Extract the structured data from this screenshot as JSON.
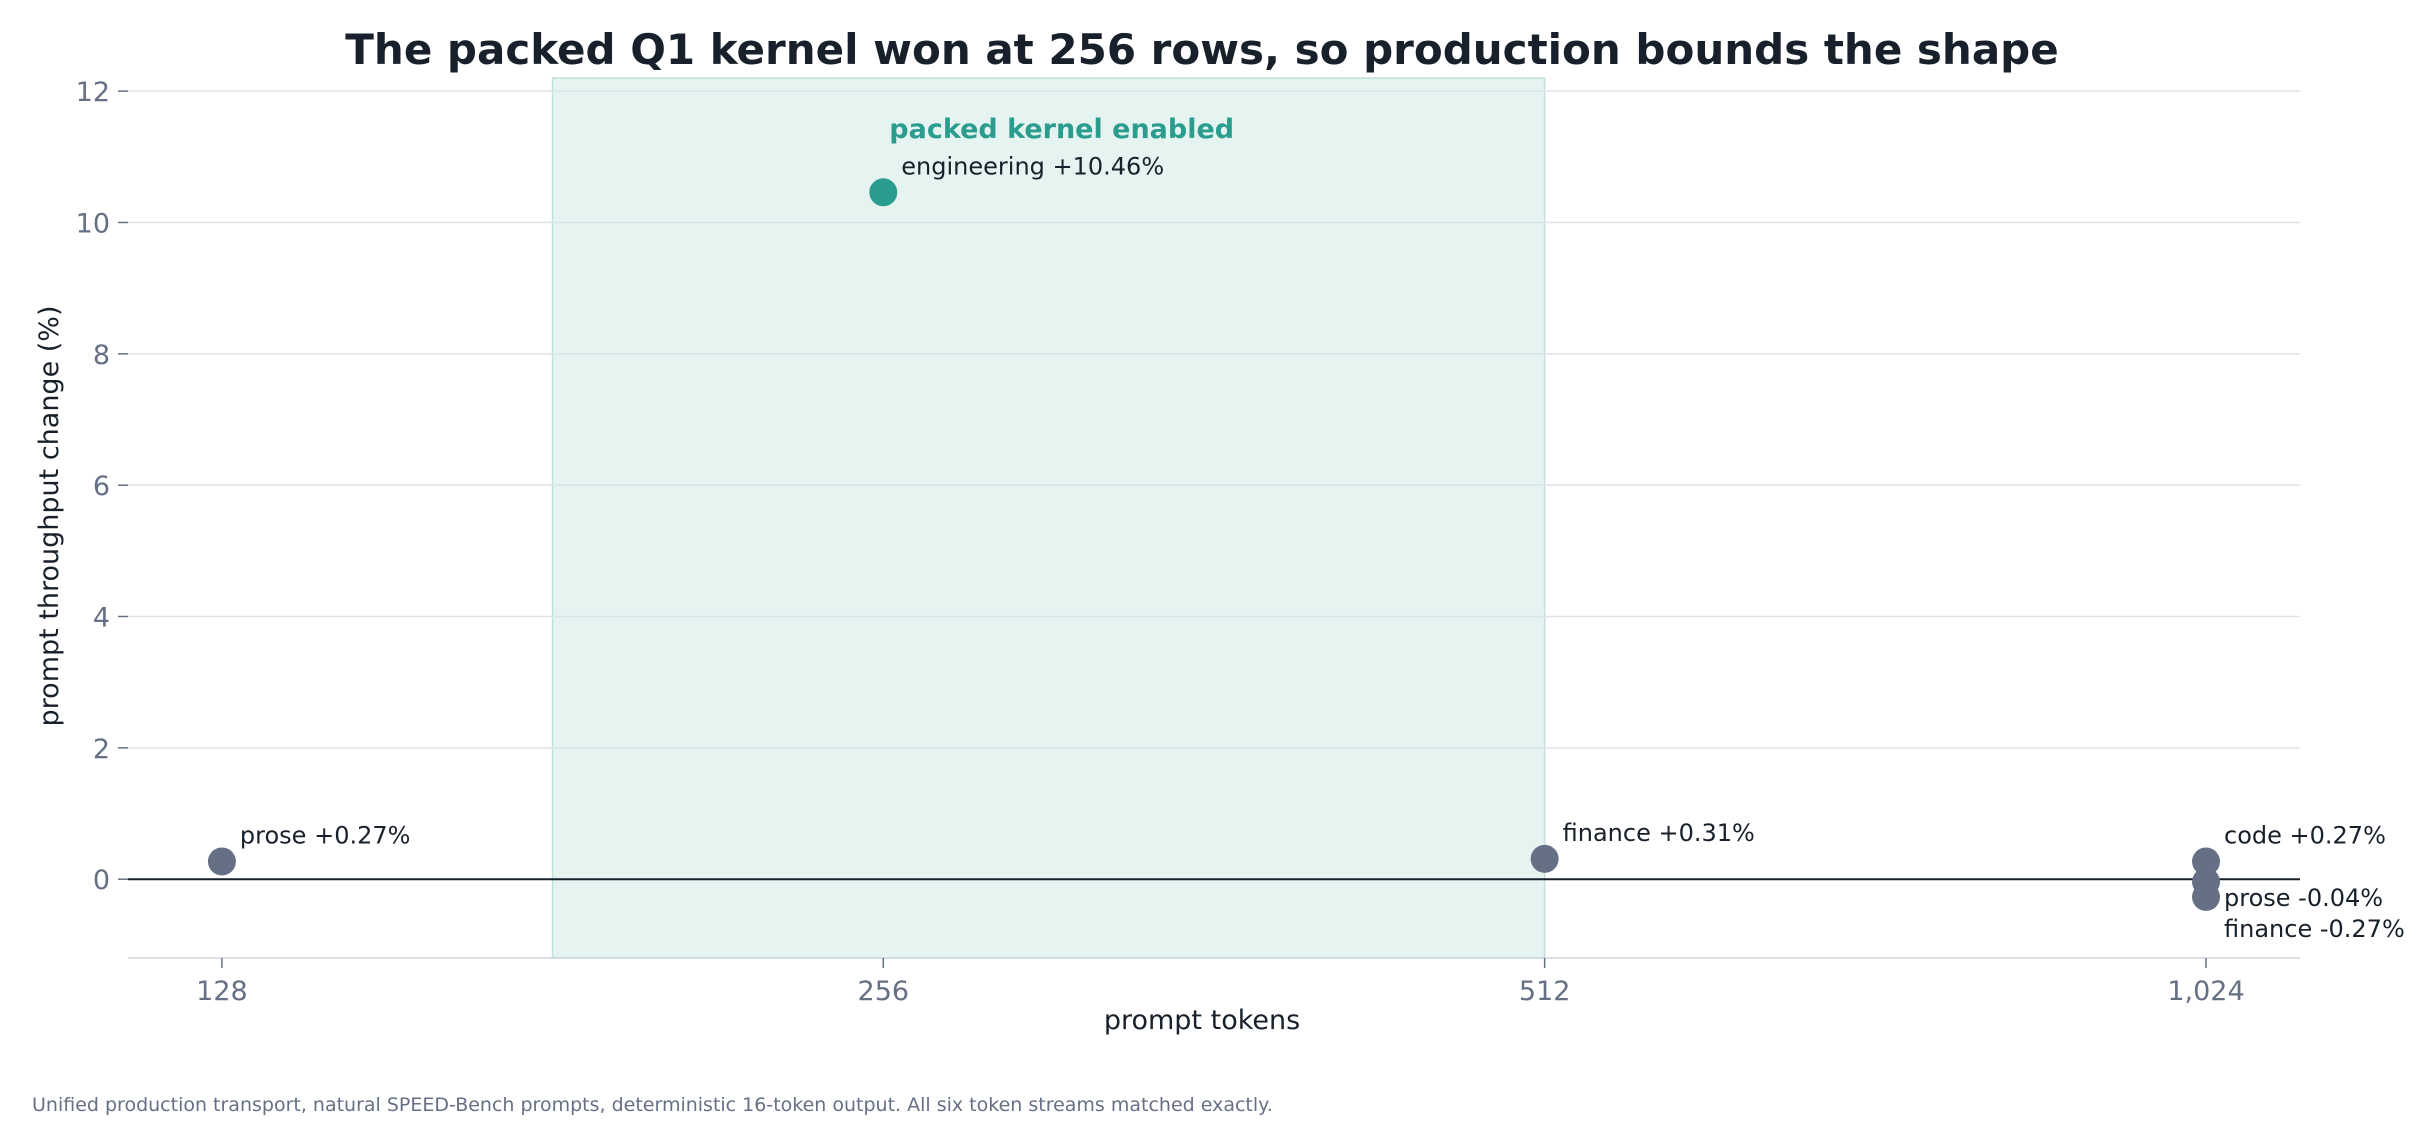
{
  "chart_data": {
    "type": "scatter",
    "title": "The packed Q1 kernel won at 256 rows, so production bounds the shape",
    "xlabel": "prompt tokens",
    "ylabel": "prompt throughput change (%)",
    "x_scale": "log2",
    "x_ticks": [
      128,
      256,
      512,
      1024
    ],
    "x_tick_labels": [
      "128",
      "256",
      "512",
      "1,024"
    ],
    "xlim": [
      116,
      1130
    ],
    "ylim": [
      -1.2,
      12.2
    ],
    "y_ticks": [
      0,
      2,
      4,
      6,
      8,
      10,
      12
    ],
    "y_tick_labels": [
      "0",
      "2",
      "4",
      "6",
      "8",
      "10",
      "12"
    ],
    "grid": "horizontal",
    "zero_line": true,
    "band": {
      "x_start": 181,
      "x_end": 512,
      "label": "packed kernel enabled",
      "color": "#2a9d8f"
    },
    "points": [
      {
        "x": 128,
        "y": 0.27,
        "label": "prose  +0.27%",
        "highlight": false
      },
      {
        "x": 256,
        "y": 10.46,
        "label": "engineering  +10.46%",
        "highlight": true
      },
      {
        "x": 512,
        "y": 0.31,
        "label": "finance  +0.31%",
        "highlight": false
      },
      {
        "x": 1024,
        "y": 0.27,
        "label": "code  +0.27%",
        "highlight": false
      },
      {
        "x": 1024,
        "y": -0.04,
        "label": "prose  -0.04%",
        "highlight": false
      },
      {
        "x": 1024,
        "y": -0.27,
        "label": "finance  -0.27%",
        "highlight": false
      }
    ],
    "colors": {
      "highlight": "#2a9d8f",
      "normal": "#667085",
      "grid": "#dde3ea",
      "zero_line": "#18202b"
    }
  },
  "footnote": "Unified production transport, natural SPEED-Bench prompts, deterministic 16-token output. All six token streams matched exactly."
}
